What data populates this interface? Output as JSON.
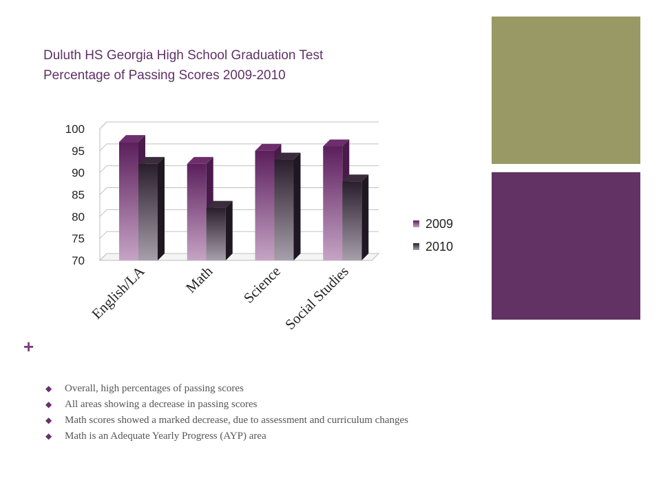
{
  "slide": {
    "title_line1": "Duluth HS Georgia High School Graduation Test",
    "title_line2": "Percentage of Passing Scores 2009-2010",
    "plus_glyph": "+",
    "accent_colors": {
      "olive": "#999966",
      "purple": "#633264",
      "title": "#5f3066"
    }
  },
  "chart_data": {
    "type": "bar",
    "categories": [
      "English/LA",
      "Math",
      "Science",
      "Social Studies"
    ],
    "series": [
      {
        "name": "2009",
        "values": [
          97,
          92,
          95,
          96
        ],
        "color": "#8a4f86"
      },
      {
        "name": "2010",
        "values": [
          92,
          82,
          93,
          88
        ],
        "color": "#5a4858"
      }
    ],
    "ylim": [
      70,
      100
    ],
    "yticks": [
      70,
      75,
      80,
      85,
      90,
      95,
      100
    ],
    "grid": true,
    "legend": "right",
    "style": "3d"
  },
  "bullets": [
    "Overall, high percentages of passing scores",
    "All areas showing a decrease in passing scores",
    "Math scores showed a marked decrease, due to assessment and curriculum changes",
    "Math is an Adequate Yearly Progress (AYP) area"
  ]
}
